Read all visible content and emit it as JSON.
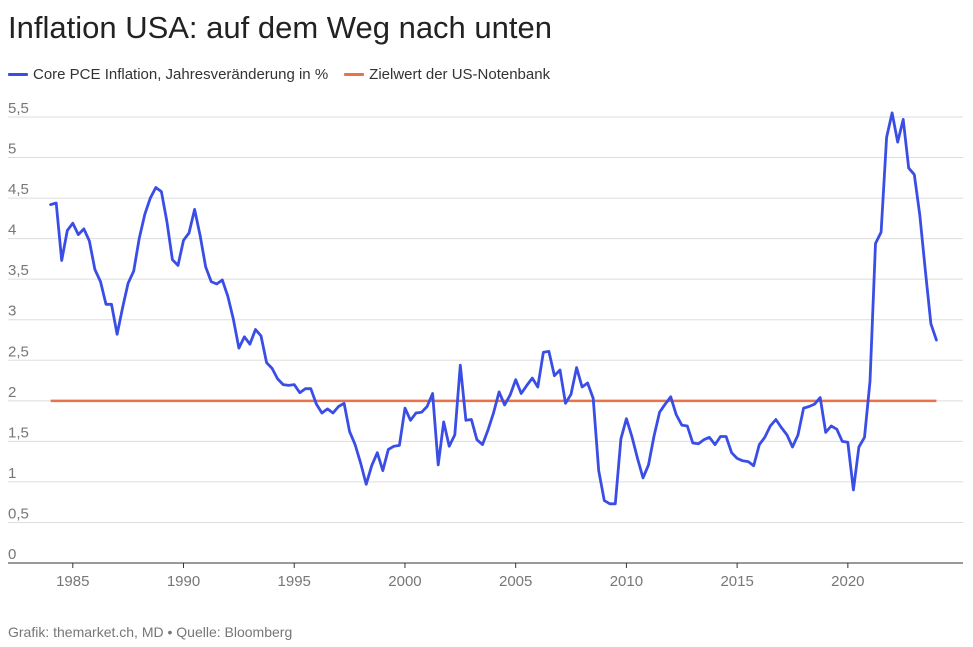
{
  "title": "Inflation USA: auf dem Weg nach unten",
  "footer": "Grafik: themarket.ch, MD • Quelle: Bloomberg",
  "colors": {
    "series": "#3a4ee6",
    "target": "#e8734a",
    "grid": "#dddddd",
    "axis": "#333333"
  },
  "chart_data": {
    "type": "line",
    "title": "Inflation USA: auf dem Weg nach unten",
    "xlabel": "",
    "ylabel": "",
    "xlim": [
      1983.7,
      2025.2
    ],
    "ylim": [
      0,
      5.5
    ],
    "x_ticks": [
      1985,
      1990,
      1995,
      2000,
      2005,
      2010,
      2015,
      2020
    ],
    "x_tick_labels": [
      "1985",
      "1990",
      "1995",
      "2000",
      "2005",
      "2010",
      "2015",
      "2020"
    ],
    "y_ticks": [
      0,
      0.5,
      1,
      1.5,
      2,
      2.5,
      3,
      3.5,
      4,
      4.5,
      5,
      5.5
    ],
    "y_tick_labels": [
      "0",
      "0,5",
      "1",
      "1,5",
      "2",
      "2,5",
      "3",
      "3,5",
      "4",
      "4,5",
      "5",
      "5,5"
    ],
    "grid": true,
    "legend_position": "top-left",
    "series": [
      {
        "name": "Core PCE Inflation, Jahresveränderung in %",
        "x": [
          1984.0,
          1984.25,
          1984.5,
          1984.75,
          1985.0,
          1985.25,
          1985.5,
          1985.75,
          1986.0,
          1986.25,
          1986.5,
          1986.75,
          1987.0,
          1987.25,
          1987.5,
          1987.75,
          1988.0,
          1988.25,
          1988.5,
          1988.75,
          1989.0,
          1989.25,
          1989.5,
          1989.75,
          1990.0,
          1990.25,
          1990.5,
          1990.75,
          1991.0,
          1991.25,
          1991.5,
          1991.75,
          1992.0,
          1992.25,
          1992.5,
          1992.75,
          1993.0,
          1993.25,
          1993.5,
          1993.75,
          1994.0,
          1994.25,
          1994.5,
          1994.75,
          1995.0,
          1995.25,
          1995.5,
          1995.75,
          1996.0,
          1996.25,
          1996.5,
          1996.75,
          1997.0,
          1997.25,
          1997.5,
          1997.75,
          1998.0,
          1998.25,
          1998.5,
          1998.75,
          1999.0,
          1999.25,
          1999.5,
          1999.75,
          2000.0,
          2000.25,
          2000.5,
          2000.75,
          2001.0,
          2001.25,
          2001.5,
          2001.75,
          2002.0,
          2002.25,
          2002.5,
          2002.75,
          2003.0,
          2003.25,
          2003.5,
          2003.75,
          2004.0,
          2004.25,
          2004.5,
          2004.75,
          2005.0,
          2005.25,
          2005.5,
          2005.75,
          2006.0,
          2006.25,
          2006.5,
          2006.75,
          2007.0,
          2007.25,
          2007.5,
          2007.75,
          2008.0,
          2008.25,
          2008.5,
          2008.75,
          2009.0,
          2009.25,
          2009.5,
          2009.75,
          2010.0,
          2010.25,
          2010.5,
          2010.75,
          2011.0,
          2011.25,
          2011.5,
          2011.75,
          2012.0,
          2012.25,
          2012.5,
          2012.75,
          2013.0,
          2013.25,
          2013.5,
          2013.75,
          2014.0,
          2014.25,
          2014.5,
          2014.75,
          2015.0,
          2015.25,
          2015.5,
          2015.75,
          2016.0,
          2016.25,
          2016.5,
          2016.75,
          2017.0,
          2017.25,
          2017.5,
          2017.75,
          2018.0,
          2018.25,
          2018.5,
          2018.75,
          2019.0,
          2019.25,
          2019.5,
          2019.75,
          2020.0,
          2020.25,
          2020.5,
          2020.75,
          2021.0,
          2021.25,
          2021.5,
          2021.75,
          2022.0,
          2022.25,
          2022.5,
          2022.75,
          2023.0,
          2023.25,
          2023.5,
          2023.75,
          2024.0
        ],
        "values": [
          4.42,
          4.44,
          3.73,
          4.1,
          4.19,
          4.05,
          4.12,
          3.97,
          3.62,
          3.47,
          3.19,
          3.19,
          2.82,
          3.15,
          3.45,
          3.6,
          4.0,
          4.3,
          4.5,
          4.63,
          4.58,
          4.21,
          3.74,
          3.67,
          3.98,
          4.07,
          4.36,
          4.04,
          3.65,
          3.47,
          3.44,
          3.49,
          3.29,
          3.01,
          2.65,
          2.79,
          2.7,
          2.88,
          2.8,
          2.47,
          2.4,
          2.27,
          2.2,
          2.19,
          2.2,
          2.1,
          2.15,
          2.15,
          1.96,
          1.85,
          1.9,
          1.85,
          1.93,
          1.97,
          1.62,
          1.46,
          1.23,
          0.97,
          1.2,
          1.36,
          1.14,
          1.4,
          1.44,
          1.45,
          1.91,
          1.76,
          1.85,
          1.86,
          1.93,
          2.09,
          1.21,
          1.74,
          1.44,
          1.58,
          2.44,
          1.76,
          1.77,
          1.52,
          1.46,
          1.64,
          1.85,
          2.11,
          1.95,
          2.07,
          2.26,
          2.09,
          2.19,
          2.28,
          2.17,
          2.6,
          2.61,
          2.31,
          2.38,
          1.97,
          2.08,
          2.41,
          2.17,
          2.22,
          2.03,
          1.14,
          0.77,
          0.73,
          0.73,
          1.53,
          1.78,
          1.56,
          1.29,
          1.05,
          1.21,
          1.57,
          1.86,
          1.96,
          2.05,
          1.83,
          1.7,
          1.69,
          1.48,
          1.47,
          1.52,
          1.55,
          1.46,
          1.56,
          1.56,
          1.36,
          1.29,
          1.26,
          1.25,
          1.2,
          1.46,
          1.55,
          1.69,
          1.77,
          1.67,
          1.58,
          1.43,
          1.58,
          1.91,
          1.93,
          1.96,
          2.04,
          1.61,
          1.69,
          1.65,
          1.5,
          1.49,
          0.9,
          1.43,
          1.55,
          2.24,
          3.94,
          4.08,
          5.25,
          5.55,
          5.19,
          5.47,
          4.87,
          4.79,
          4.29,
          3.6,
          2.95,
          2.75
        ]
      },
      {
        "name": "Zielwert der US-Notenbank",
        "x": [
          1984.0,
          2024.0
        ],
        "values": [
          2,
          2
        ]
      }
    ]
  }
}
